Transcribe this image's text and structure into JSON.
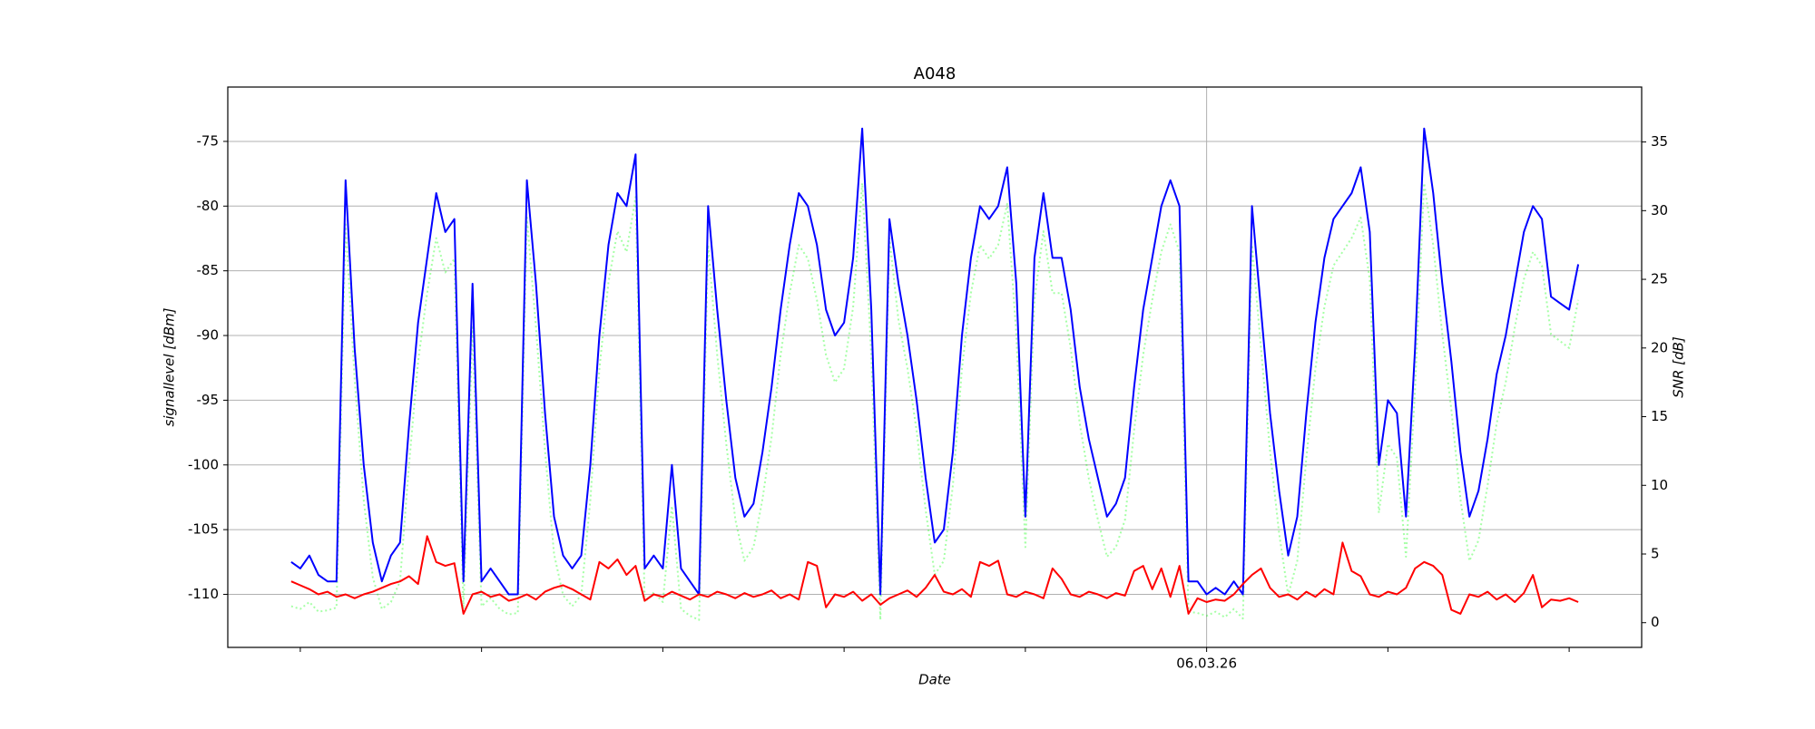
{
  "chart_data": {
    "type": "line",
    "title": "A048",
    "xlabel": "Date",
    "ylabel": "signallevel [dBm]",
    "y2label": "SNR [dB]",
    "x": [
      -5.05,
      -5,
      -4.95,
      -4.9,
      -4.85,
      -4.8,
      -4.75,
      -4.7,
      -4.65,
      -4.6,
      -4.55,
      -4.5,
      -4.45,
      -4.4,
      -4.35,
      -4.3,
      -4.25,
      -4.2,
      -4.15,
      -4.1,
      -4.05,
      -4,
      -3.95,
      -3.9,
      -3.85,
      -3.8,
      -3.75,
      -3.7,
      -3.65,
      -3.6,
      -3.55,
      -3.5,
      -3.45,
      -3.4,
      -3.35,
      -3.3,
      -3.25,
      -3.2,
      -3.15,
      -3.1,
      -3.05,
      -3,
      -2.95,
      -2.9,
      -2.85,
      -2.8,
      -2.75,
      -2.7,
      -2.65,
      -2.6,
      -2.55,
      -2.5,
      -2.45,
      -2.4,
      -2.35,
      -2.3,
      -2.25,
      -2.2,
      -2.15,
      -2.1,
      -2.05,
      -2,
      -1.95,
      -1.9,
      -1.85,
      -1.8,
      -1.75,
      -1.7,
      -1.65,
      -1.6,
      -1.55,
      -1.5,
      -1.45,
      -1.4,
      -1.35,
      -1.3,
      -1.25,
      -1.2,
      -1.15,
      -1.1,
      -1.05,
      -1,
      -0.95,
      -0.9,
      -0.85,
      -0.8,
      -0.75,
      -0.7,
      -0.65,
      -0.6,
      -0.55,
      -0.5,
      -0.45,
      -0.4,
      -0.35,
      -0.3,
      -0.25,
      -0.2,
      -0.15,
      -0.1,
      -0.05,
      0,
      0.05,
      0.1,
      0.15,
      0.2,
      0.25,
      0.3,
      0.35,
      0.4,
      0.45,
      0.5,
      0.55,
      0.6,
      0.65,
      0.7,
      0.75,
      0.8,
      0.85,
      0.9,
      0.95,
      1,
      1.05,
      1.1,
      1.15,
      1.2,
      1.25,
      1.3,
      1.35,
      1.4,
      1.45,
      1.5,
      1.55,
      1.6,
      1.65,
      1.7,
      1.75,
      1.8,
      1.85,
      1.9,
      1.95,
      2,
      2.05
    ],
    "series": [
      {
        "color": "#00ff00",
        "alpha": 0.35,
        "style": "dotted",
        "axis": "y2",
        "values": [
          1.2,
          1.0,
          1.5,
          0.8,
          0.9,
          1.1,
          29,
          17.7,
          8.9,
          3.3,
          1.0,
          1.5,
          3.0,
          11.5,
          19.0,
          24.0,
          28.0,
          25.5,
          26.5,
          1.0,
          21.5,
          1.2,
          1.8,
          1.0,
          0.6,
          0.7,
          29.5,
          21.5,
          12.5,
          5.0,
          2.0,
          1.2,
          2.0,
          8.9,
          18.5,
          24.8,
          28.5,
          27.0,
          31.0,
          1.5,
          2.2,
          1.5,
          8.5,
          1.0,
          0.5,
          0.2,
          27.5,
          19.5,
          13.0,
          7.5,
          4.5,
          5.5,
          9.0,
          13.5,
          19.5,
          24.0,
          27.5,
          26.5,
          23.5,
          19.5,
          17.5,
          18.5,
          23.0,
          32.0,
          19.5,
          0.2,
          28.0,
          22.0,
          18.5,
          14.0,
          8.2,
          3.5,
          4.5,
          10.0,
          18.5,
          24.0,
          27.5,
          26.5,
          27.5,
          30.5,
          21.0,
          5.5,
          23.5,
          28.5,
          24.0,
          24.0,
          20.0,
          14.5,
          10.5,
          7.5,
          4.8,
          5.5,
          7.5,
          14.0,
          19.5,
          23.5,
          27.0,
          29.0,
          27.0,
          0.8,
          0.7,
          0.5,
          0.8,
          0.4,
          1.0,
          0.3,
          27.5,
          20.0,
          12.5,
          6.5,
          2.0,
          4.5,
          12.0,
          18.5,
          23.0,
          26.0,
          27.0,
          28.0,
          29.5,
          25.0,
          8.0,
          13.0,
          12.0,
          4.8,
          17.0,
          32.0,
          27.5,
          21.0,
          15.5,
          9.0,
          4.5,
          6.0,
          10.0,
          14.5,
          17.5,
          21.5,
          25.0,
          27.0,
          26.0,
          21.0,
          20.5,
          20.0,
          23.5
        ]
      },
      {
        "color": "#0000ff",
        "style": "solid",
        "values": [
          -107.5,
          -108,
          -107,
          -108.5,
          -109,
          -109,
          -78,
          -91,
          -100,
          -106,
          -109,
          -107,
          -106,
          -97,
          -89,
          -84,
          -79,
          -82,
          -81,
          -109,
          -86,
          -109,
          -108,
          -109,
          -110,
          -110,
          -78,
          -86,
          -96,
          -104,
          -107,
          -108,
          -107,
          -100,
          -90,
          -83,
          -79,
          -80,
          -76,
          -108,
          -107,
          -108,
          -100,
          -108,
          -109,
          -110,
          -80,
          -88,
          -95,
          -101,
          -104,
          -103,
          -99,
          -94,
          -88,
          -83,
          -79,
          -80,
          -83,
          -88,
          -90,
          -89,
          -84,
          -74,
          -88,
          -110,
          -81,
          -86,
          -90,
          -95,
          -101,
          -106,
          -105,
          -99,
          -90,
          -84,
          -80,
          -81,
          -80,
          -77,
          -86,
          -104,
          -84,
          -79,
          -84,
          -84,
          -88,
          -94,
          -98,
          -101,
          -104,
          -103,
          -101,
          -94,
          -88,
          -84,
          -80,
          -78,
          -80,
          -109,
          -109,
          -110,
          -109.5,
          -110,
          -109,
          -110,
          -80,
          -88,
          -96,
          -102,
          -107,
          -104,
          -96,
          -89,
          -84,
          -81,
          -80,
          -79,
          -77,
          -82,
          -100,
          -95,
          -96,
          -104,
          -91,
          -74,
          -79,
          -86,
          -92,
          -99,
          -104,
          -102,
          -98,
          -93,
          -90,
          -86,
          -82,
          -80,
          -81,
          -87,
          -87.5,
          -88,
          -84.5
        ]
      },
      {
        "color": "#ff0000",
        "style": "solid",
        "values": [
          -109,
          -109.3,
          -109.6,
          -110,
          -109.8,
          -110.2,
          -110,
          -110.3,
          -110,
          -109.8,
          -109.5,
          -109.2,
          -109,
          -108.6,
          -109.2,
          -105.5,
          -107.5,
          -107.8,
          -107.6,
          -111.5,
          -110,
          -109.8,
          -110.2,
          -110,
          -110.5,
          -110.3,
          -110,
          -110.4,
          -109.8,
          -109.5,
          -109.3,
          -109.6,
          -110,
          -110.4,
          -107.5,
          -108,
          -107.3,
          -108.5,
          -107.8,
          -110.5,
          -110,
          -110.2,
          -109.8,
          -110.1,
          -110.4,
          -110,
          -110.2,
          -109.8,
          -110,
          -110.3,
          -109.9,
          -110.2,
          -110,
          -109.7,
          -110.3,
          -110,
          -110.4,
          -107.5,
          -107.8,
          -111,
          -110,
          -110.2,
          -109.8,
          -110.5,
          -110,
          -110.8,
          -110.3,
          -110,
          -109.7,
          -110.2,
          -109.5,
          -108.5,
          -109.8,
          -110,
          -109.6,
          -110.2,
          -107.5,
          -107.8,
          -107.4,
          -110,
          -110.2,
          -109.8,
          -110,
          -110.3,
          -108,
          -108.8,
          -110,
          -110.2,
          -109.8,
          -110,
          -110.3,
          -109.9,
          -110.1,
          -108.2,
          -107.8,
          -109.6,
          -108,
          -110.2,
          -107.8,
          -111.5,
          -110.3,
          -110.6,
          -110.4,
          -110.5,
          -110,
          -109.2,
          -108.5,
          -108,
          -109.5,
          -110.2,
          -110,
          -110.4,
          -109.8,
          -110.2,
          -109.6,
          -110,
          -106,
          -108.2,
          -108.6,
          -110,
          -110.2,
          -109.8,
          -110,
          -109.5,
          -108,
          -107.5,
          -107.8,
          -108.5,
          -111.2,
          -111.5,
          -110,
          -110.2,
          -109.8,
          -110.4,
          -110,
          -110.6,
          -109.9,
          -108.5,
          -111,
          -110.4,
          -110.5,
          -110.3,
          -110.6
        ]
      }
    ],
    "xlim": [
      -5.4,
      2.4
    ],
    "xticks": [
      {
        "value": 0,
        "label": "06.03.26"
      }
    ],
    "xticks_unlabeled": [
      -5,
      -4,
      -3,
      -2,
      -1,
      1,
      2
    ],
    "ylim": [
      -114.1,
      -70.8
    ],
    "yticks": [
      -110,
      -105,
      -100,
      -95,
      -90,
      -85,
      -80,
      -75
    ],
    "y2lim": [
      -1.8,
      39
    ],
    "y2ticks": [
      0,
      5,
      10,
      15,
      20,
      25,
      30,
      35
    ],
    "grid": true
  }
}
